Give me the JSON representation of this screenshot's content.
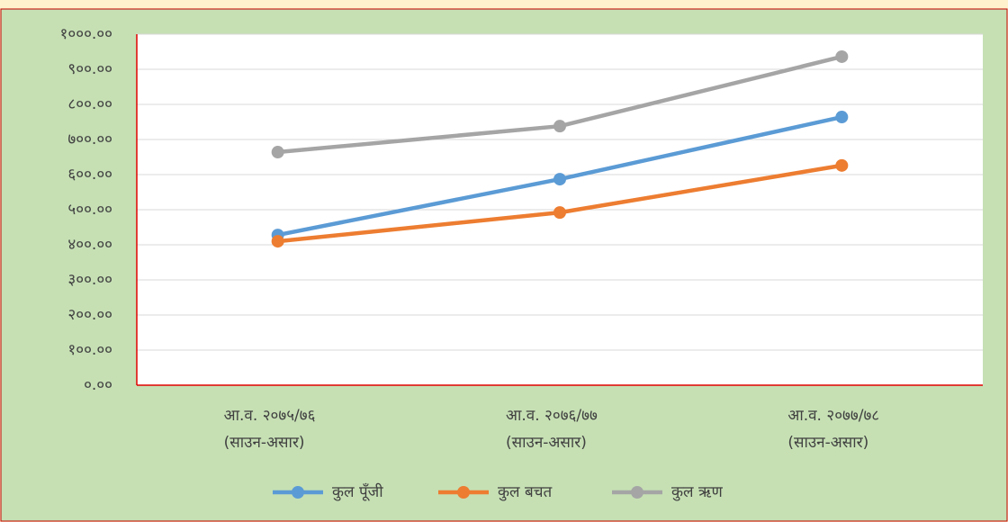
{
  "chart_data": {
    "type": "line",
    "categories": [
      [
        "आ.व. २०७५/७६",
        "(साउन-असार)"
      ],
      [
        "आ.व. २०७६/७७",
        "(साउन-असार)"
      ],
      [
        "आ.व. २०७७/७८",
        "(साउन-असार)"
      ]
    ],
    "series": [
      {
        "name": "कुल पूँजी",
        "color": "#5b9bd5",
        "values": [
          428,
          587,
          764
        ]
      },
      {
        "name": "कुल बचत",
        "color": "#ed7d31",
        "values": [
          410,
          492,
          626
        ]
      },
      {
        "name": "कुल ऋण",
        "color": "#a5a5a5",
        "values": [
          664,
          738,
          936
        ]
      }
    ],
    "ylim": [
      0,
      1000
    ],
    "yticks": [
      {
        "value": 0,
        "label": "०.००"
      },
      {
        "value": 100,
        "label": "१००.००"
      },
      {
        "value": 200,
        "label": "२००.००"
      },
      {
        "value": 300,
        "label": "३००.००"
      },
      {
        "value": 400,
        "label": "४००.००"
      },
      {
        "value": 500,
        "label": "५००.००"
      },
      {
        "value": 600,
        "label": "६००.००"
      },
      {
        "value": 700,
        "label": "७००.००"
      },
      {
        "value": 800,
        "label": "८००.००"
      },
      {
        "value": 900,
        "label": "९००.००"
      },
      {
        "value": 1000,
        "label": "१०००.००"
      }
    ],
    "grid": true
  }
}
